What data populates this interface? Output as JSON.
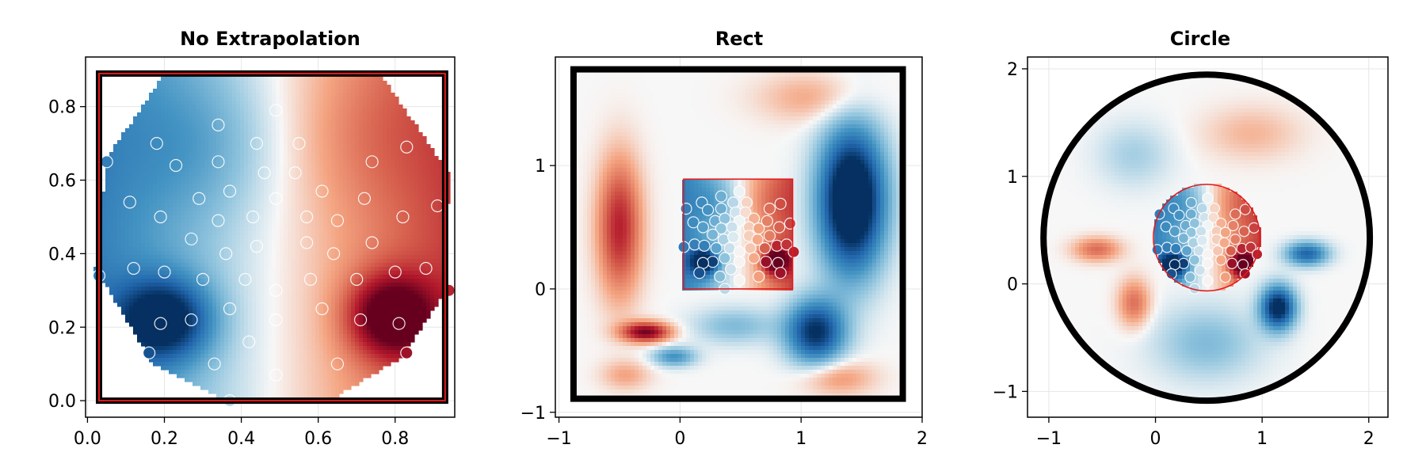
{
  "colors": {
    "cmap_low": "#053061",
    "cmap_mid": "#f7f7f7",
    "cmap_high": "#67001f",
    "frame": "#000000",
    "bound_red": "#e31a1c",
    "grid": "#e6e6e6"
  },
  "chart_data": [
    {
      "type": "heatmap",
      "title": "No Extrapolation",
      "xlabel": "",
      "ylabel": "",
      "xlim": [
        -0.005,
        0.955
      ],
      "ylim": [
        -0.045,
        0.935
      ],
      "x_ticks": [
        0.0,
        0.2,
        0.4,
        0.6,
        0.8
      ],
      "x_tick_labels": [
        "0.0",
        "0.2",
        "0.4",
        "0.6",
        "0.8"
      ],
      "y_ticks": [
        0.0,
        0.2,
        0.4,
        0.6,
        0.8
      ],
      "y_tick_labels": [
        "0.0",
        "0.2",
        "0.4",
        "0.6",
        "0.8"
      ],
      "grid": true,
      "extrapolation": "none",
      "boundary": {
        "shape": "rect",
        "x0": 0.03,
        "y0": 0.0,
        "x1": 0.93,
        "y1": 0.89
      },
      "field_hull": [
        [
          0.2,
          0.89
        ],
        [
          0.76,
          0.89
        ],
        [
          0.94,
          0.62
        ],
        [
          0.93,
          0.3
        ],
        [
          0.82,
          0.12
        ],
        [
          0.63,
          0.0
        ],
        [
          0.36,
          0.0
        ],
        [
          0.17,
          0.1
        ],
        [
          0.02,
          0.36
        ],
        [
          0.05,
          0.66
        ]
      ],
      "sample_points": [
        [
          0.34,
          0.75
        ],
        [
          0.49,
          0.79
        ],
        [
          0.18,
          0.7
        ],
        [
          0.44,
          0.7
        ],
        [
          0.55,
          0.7
        ],
        [
          0.23,
          0.64
        ],
        [
          0.34,
          0.65
        ],
        [
          0.46,
          0.62
        ],
        [
          0.54,
          0.62
        ],
        [
          0.74,
          0.65
        ],
        [
          0.83,
          0.69
        ],
        [
          0.05,
          0.65
        ],
        [
          0.29,
          0.55
        ],
        [
          0.37,
          0.57
        ],
        [
          0.49,
          0.55
        ],
        [
          0.61,
          0.57
        ],
        [
          0.72,
          0.55
        ],
        [
          0.11,
          0.54
        ],
        [
          0.91,
          0.53
        ],
        [
          0.19,
          0.5
        ],
        [
          0.34,
          0.49
        ],
        [
          0.43,
          0.5
        ],
        [
          0.57,
          0.5
        ],
        [
          0.65,
          0.49
        ],
        [
          0.82,
          0.5
        ],
        [
          0.27,
          0.44
        ],
        [
          0.36,
          0.4
        ],
        [
          0.44,
          0.42
        ],
        [
          0.57,
          0.43
        ],
        [
          0.64,
          0.4
        ],
        [
          0.74,
          0.43
        ],
        [
          0.12,
          0.36
        ],
        [
          0.2,
          0.35
        ],
        [
          0.3,
          0.33
        ],
        [
          0.41,
          0.33
        ],
        [
          0.58,
          0.33
        ],
        [
          0.7,
          0.33
        ],
        [
          0.8,
          0.35
        ],
        [
          0.88,
          0.36
        ],
        [
          0.03,
          0.34
        ],
        [
          0.37,
          0.25
        ],
        [
          0.49,
          0.3
        ],
        [
          0.61,
          0.25
        ],
        [
          0.27,
          0.22
        ],
        [
          0.49,
          0.22
        ],
        [
          0.19,
          0.21
        ],
        [
          0.71,
          0.22
        ],
        [
          0.81,
          0.21
        ],
        [
          0.94,
          0.3
        ],
        [
          0.16,
          0.13
        ],
        [
          0.42,
          0.16
        ],
        [
          0.33,
          0.1
        ],
        [
          0.49,
          0.07
        ],
        [
          0.65,
          0.1
        ],
        [
          0.83,
          0.13
        ],
        [
          0.37,
          0.0
        ]
      ]
    },
    {
      "type": "heatmap",
      "title": "Rect",
      "xlabel": "",
      "ylabel": "",
      "xlim": [
        -1.03,
        2.0
      ],
      "ylim": [
        -1.04,
        1.88
      ],
      "x_ticks": [
        -1,
        0,
        1,
        2
      ],
      "x_tick_labels": [
        "−1",
        "0",
        "1",
        "2"
      ],
      "y_ticks": [
        -1,
        0,
        1
      ],
      "y_tick_labels": [
        "−1",
        "0",
        "1"
      ],
      "grid": true,
      "extrapolation": "rect",
      "boundary": {
        "shape": "rect",
        "x0": -0.88,
        "y0": -0.89,
        "x1": 1.84,
        "y1": 1.78
      },
      "data_boundary": {
        "shape": "rect",
        "x0": 0.03,
        "y0": 0.0,
        "x1": 0.93,
        "y1": 0.89
      }
    },
    {
      "type": "heatmap",
      "title": "Circle",
      "xlabel": "",
      "ylabel": "",
      "xlim": [
        -1.2,
        2.18
      ],
      "ylim": [
        -1.24,
        2.11
      ],
      "x_ticks": [
        -1,
        0,
        1,
        2
      ],
      "x_tick_labels": [
        "−1",
        "0",
        "1",
        "2"
      ],
      "y_ticks": [
        -1,
        0,
        1,
        2
      ],
      "y_tick_labels": [
        "−1",
        "0",
        "1",
        "2"
      ],
      "grid": true,
      "extrapolation": "circle",
      "boundary": {
        "shape": "circle",
        "cx": 0.48,
        "cy": 0.43,
        "r": 1.53
      },
      "data_boundary": {
        "shape": "circle",
        "cx": 0.48,
        "cy": 0.43,
        "r": 0.5
      }
    }
  ]
}
